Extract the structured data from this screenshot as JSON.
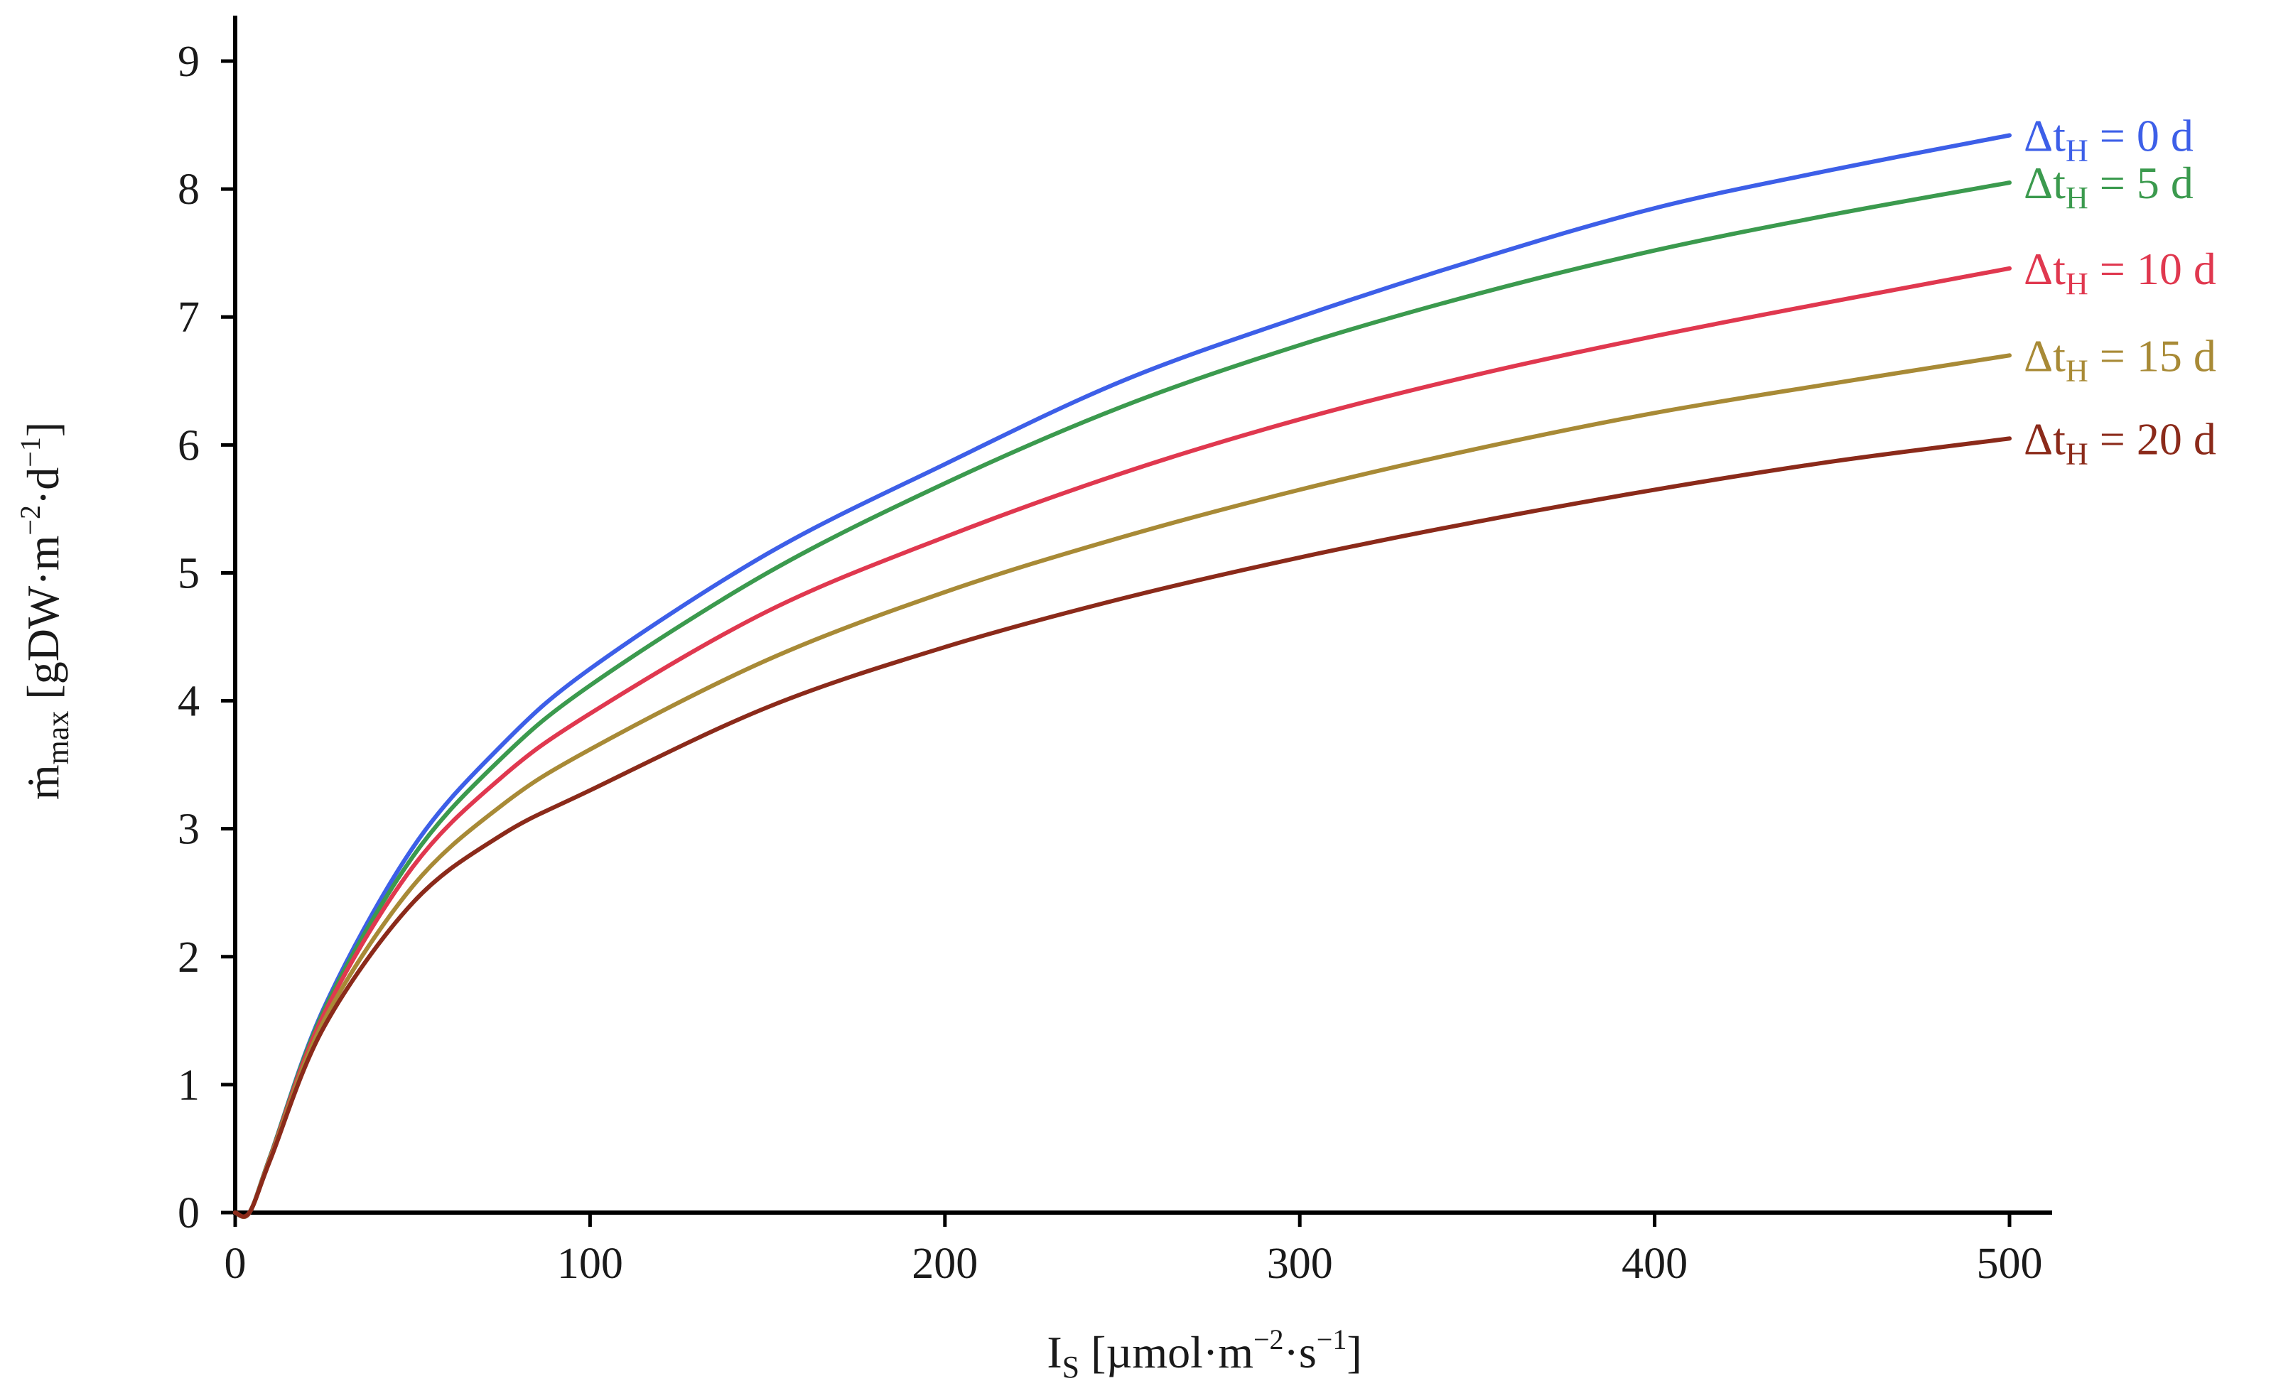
{
  "chart_data": {
    "type": "line",
    "xlabel": {
      "main": "I",
      "sub": "S",
      "rest": " [µmol·m",
      "sup1": "−2",
      "mid": "·s",
      "sup2": "−1",
      "end": "]"
    },
    "ylabel": {
      "main": "ṁ",
      "sub": "max",
      "rest": " [gDW·m",
      "sup1": "−2",
      "mid": "·d",
      "sup2": "−1",
      "end": "]"
    },
    "xlim": [
      0,
      512
    ],
    "ylim": [
      0,
      9.3
    ],
    "xticks": [
      0,
      100,
      200,
      300,
      400,
      500
    ],
    "yticks": [
      0,
      1,
      2,
      3,
      4,
      5,
      6,
      7,
      8,
      9
    ],
    "legend_placement": "right, at line ends",
    "series": [
      {
        "name": "Δt_H = 0 d",
        "label_pre": "Δt",
        "label_sub": "H",
        "label_post": " = 0 d",
        "color": "#3d5fe8",
        "x": [
          0,
          4,
          10,
          25,
          50,
          75,
          100,
          150,
          200,
          250,
          300,
          350,
          400,
          450,
          500
        ],
        "y": [
          0,
          0,
          0.45,
          1.6,
          2.85,
          3.65,
          4.25,
          5.15,
          5.85,
          6.5,
          7.0,
          7.45,
          7.85,
          8.15,
          8.42
        ]
      },
      {
        "name": "Δt_H = 5 d",
        "label_pre": "Δt",
        "label_sub": "H",
        "label_post": " = 5 d",
        "color": "#3b9a4e",
        "x": [
          0,
          4,
          10,
          25,
          50,
          75,
          100,
          150,
          200,
          250,
          300,
          350,
          400,
          450,
          500
        ],
        "y": [
          0,
          0,
          0.45,
          1.58,
          2.78,
          3.55,
          4.12,
          5.0,
          5.7,
          6.3,
          6.78,
          7.18,
          7.52,
          7.8,
          8.05
        ]
      },
      {
        "name": "Δt_H = 10 d",
        "label_pre": "Δt",
        "label_sub": "H",
        "label_post": " = 10 d",
        "color": "#e0384f",
        "x": [
          0,
          4,
          10,
          25,
          50,
          75,
          100,
          150,
          200,
          250,
          300,
          350,
          400,
          450,
          500
        ],
        "y": [
          0,
          0,
          0.44,
          1.55,
          2.7,
          3.4,
          3.9,
          4.7,
          5.28,
          5.78,
          6.2,
          6.55,
          6.85,
          7.12,
          7.38
        ]
      },
      {
        "name": "Δt_H = 15 d",
        "label_pre": "Δt",
        "label_sub": "H",
        "label_post": " = 15 d",
        "color": "#a88a36",
        "x": [
          0,
          4,
          10,
          25,
          50,
          75,
          100,
          150,
          200,
          250,
          300,
          350,
          400,
          450,
          500
        ],
        "y": [
          0,
          0,
          0.43,
          1.5,
          2.55,
          3.18,
          3.62,
          4.32,
          4.85,
          5.28,
          5.65,
          5.97,
          6.25,
          6.48,
          6.7
        ]
      },
      {
        "name": "Δt_H = 20 d",
        "label_pre": "Δt",
        "label_sub": "H",
        "label_post": " = 20 d",
        "color": "#8b2a1a",
        "x": [
          0,
          4,
          10,
          25,
          50,
          75,
          100,
          150,
          200,
          250,
          300,
          350,
          400,
          450,
          500
        ],
        "y": [
          0,
          0,
          0.42,
          1.45,
          2.42,
          2.95,
          3.3,
          3.95,
          4.42,
          4.8,
          5.12,
          5.4,
          5.65,
          5.87,
          6.05
        ]
      }
    ]
  }
}
